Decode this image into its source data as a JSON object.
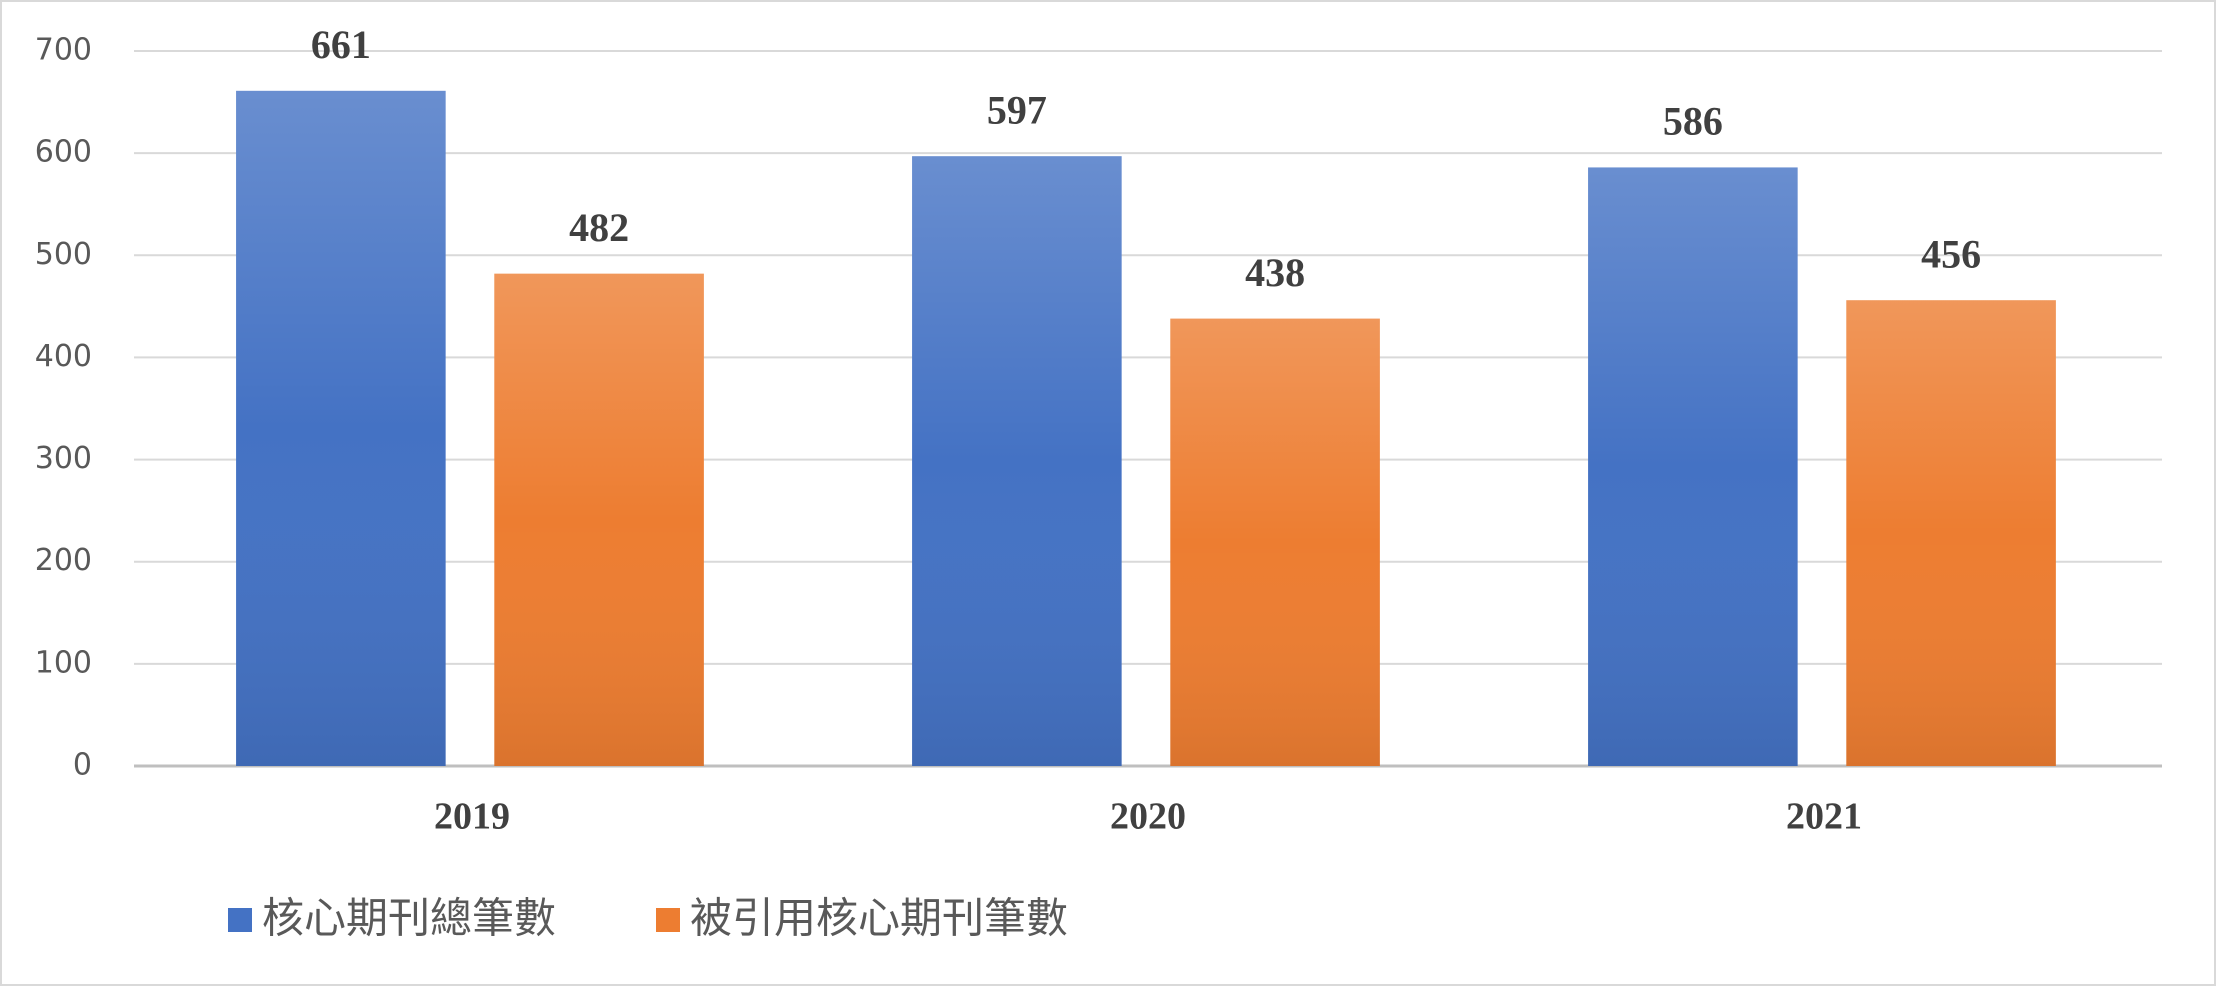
{
  "chart_data": {
    "type": "bar",
    "categories": [
      "2019",
      "2020",
      "2021"
    ],
    "series": [
      {
        "name": "核心期刊總筆數",
        "color": "#4472c4",
        "values": [
          661,
          597,
          586
        ]
      },
      {
        "name": "被引用核心期刊筆數",
        "color": "#ed7d31",
        "values": [
          482,
          438,
          456
        ]
      }
    ],
    "ylim": [
      0,
      700
    ],
    "yticks": [
      0,
      100,
      200,
      300,
      400,
      500,
      600,
      700
    ],
    "grid": true,
    "legend": "bottom"
  }
}
